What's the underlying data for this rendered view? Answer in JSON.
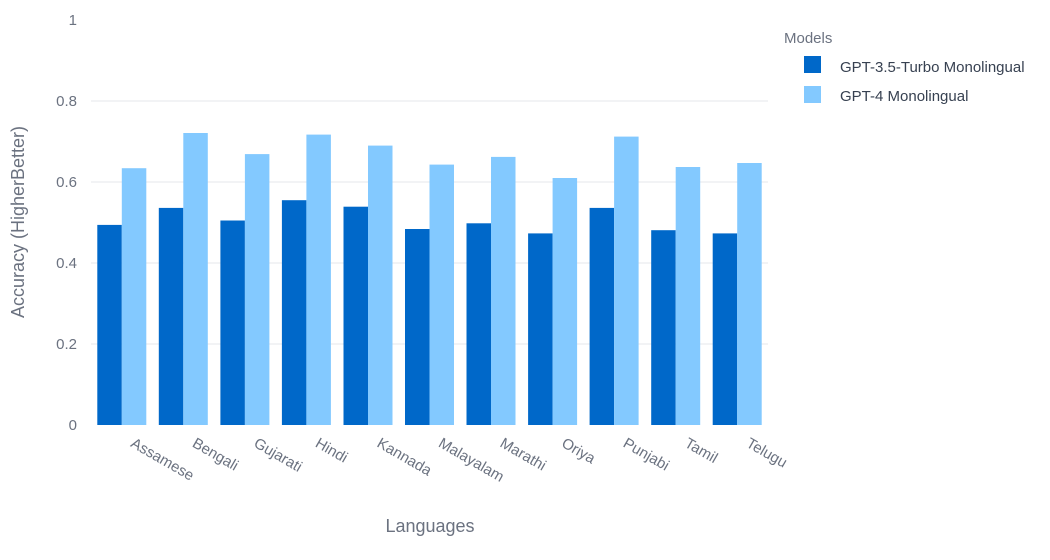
{
  "chart_data": {
    "type": "bar",
    "title": "",
    "xlabel": "Languages",
    "ylabel": "Accuracy (HigherBetter)",
    "ylim": [
      0,
      1
    ],
    "yticks": [
      "0",
      "0.2",
      "0.4",
      "0.6",
      "0.8",
      "1"
    ],
    "grid": true,
    "legend_position": "top-right",
    "legend_title": "Models",
    "categories": [
      "Assamese",
      "Bengali",
      "Gujarati",
      "Hindi",
      "Kannada",
      "Malayalam",
      "Marathi",
      "Oriya",
      "Punjabi",
      "Tamil",
      "Telugu"
    ],
    "series": [
      {
        "name": "GPT-3.5-Turbo Monolingual",
        "color": "#0068c9",
        "values": [
          0.494,
          0.536,
          0.505,
          0.555,
          0.539,
          0.484,
          0.498,
          0.473,
          0.536,
          0.481,
          0.473
        ]
      },
      {
        "name": "GPT-4 Monolingual",
        "color": "#83c9ff",
        "values": [
          0.634,
          0.721,
          0.669,
          0.717,
          0.69,
          0.643,
          0.662,
          0.61,
          0.712,
          0.637,
          0.647
        ]
      }
    ]
  }
}
